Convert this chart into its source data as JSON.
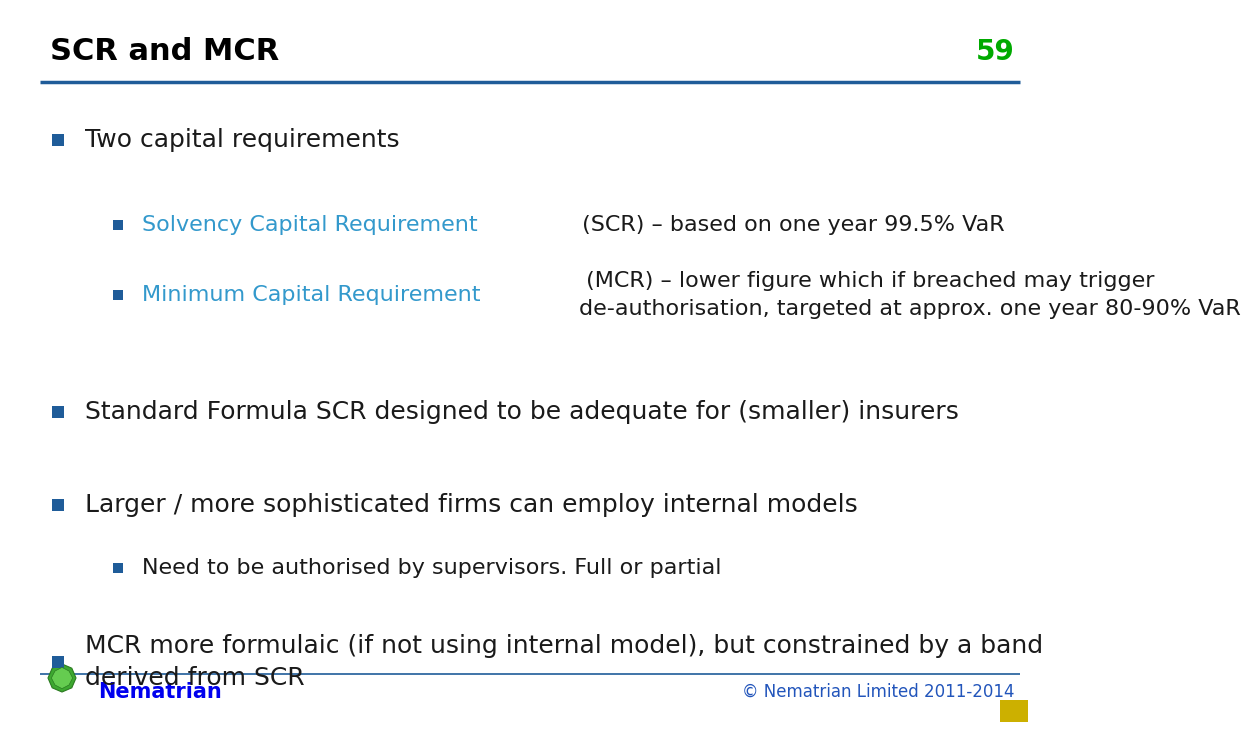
{
  "title": "SCR and MCR",
  "slide_number": "59",
  "title_color": "#000000",
  "slide_number_color": "#00AA00",
  "title_fontsize": 22,
  "slide_number_fontsize": 20,
  "top_bar_color": "#1F5C99",
  "background_color": "#FFFFFF",
  "bullet_color": "#1F5C99",
  "text_color": "#1A1A1A",
  "highlight_color": "#3399CC",
  "footer_text": "© Nematrian Limited 2011-2014",
  "footer_color": "#2255BB",
  "footer_fontsize": 12,
  "nematrian_text": "Nematrian",
  "nematrian_color": "#0000EE",
  "nematrian_fontsize": 15,
  "font_family": "DejaVu Sans",
  "main_fontsize": 18,
  "sub_fontsize": 16,
  "bullet_items": [
    {
      "level": 1,
      "parts": [
        {
          "text": "Two capital requirements",
          "color": "#1A1A1A"
        }
      ]
    },
    {
      "level": 2,
      "parts": [
        {
          "text": "Solvency Capital Requirement",
          "color": "#3399CC"
        },
        {
          "text": " (SCR) – based on one year 99.5% VaR",
          "color": "#1A1A1A"
        }
      ]
    },
    {
      "level": 2,
      "parts": [
        {
          "text": "Minimum Capital Requirement",
          "color": "#3399CC"
        },
        {
          "text": " (MCR) – lower figure which if breached may trigger\nde-authorisation, targeted at approx. one year 80-90% VaR",
          "color": "#1A1A1A"
        }
      ]
    },
    {
      "level": 1,
      "parts": [
        {
          "text": "Standard Formula SCR designed to be adequate for (smaller) insurers",
          "color": "#1A1A1A"
        }
      ]
    },
    {
      "level": 1,
      "parts": [
        {
          "text": "Larger / more sophisticated firms can employ internal models",
          "color": "#1A1A1A"
        }
      ]
    },
    {
      "level": 2,
      "parts": [
        {
          "text": "Need to be authorised by supervisors. Full or partial",
          "color": "#1A1A1A"
        }
      ]
    },
    {
      "level": 1,
      "parts": [
        {
          "text": "MCR more formulaic (if not using internal model), but constrained by a band\nderived from SCR",
          "color": "#1A1A1A"
        }
      ]
    }
  ]
}
